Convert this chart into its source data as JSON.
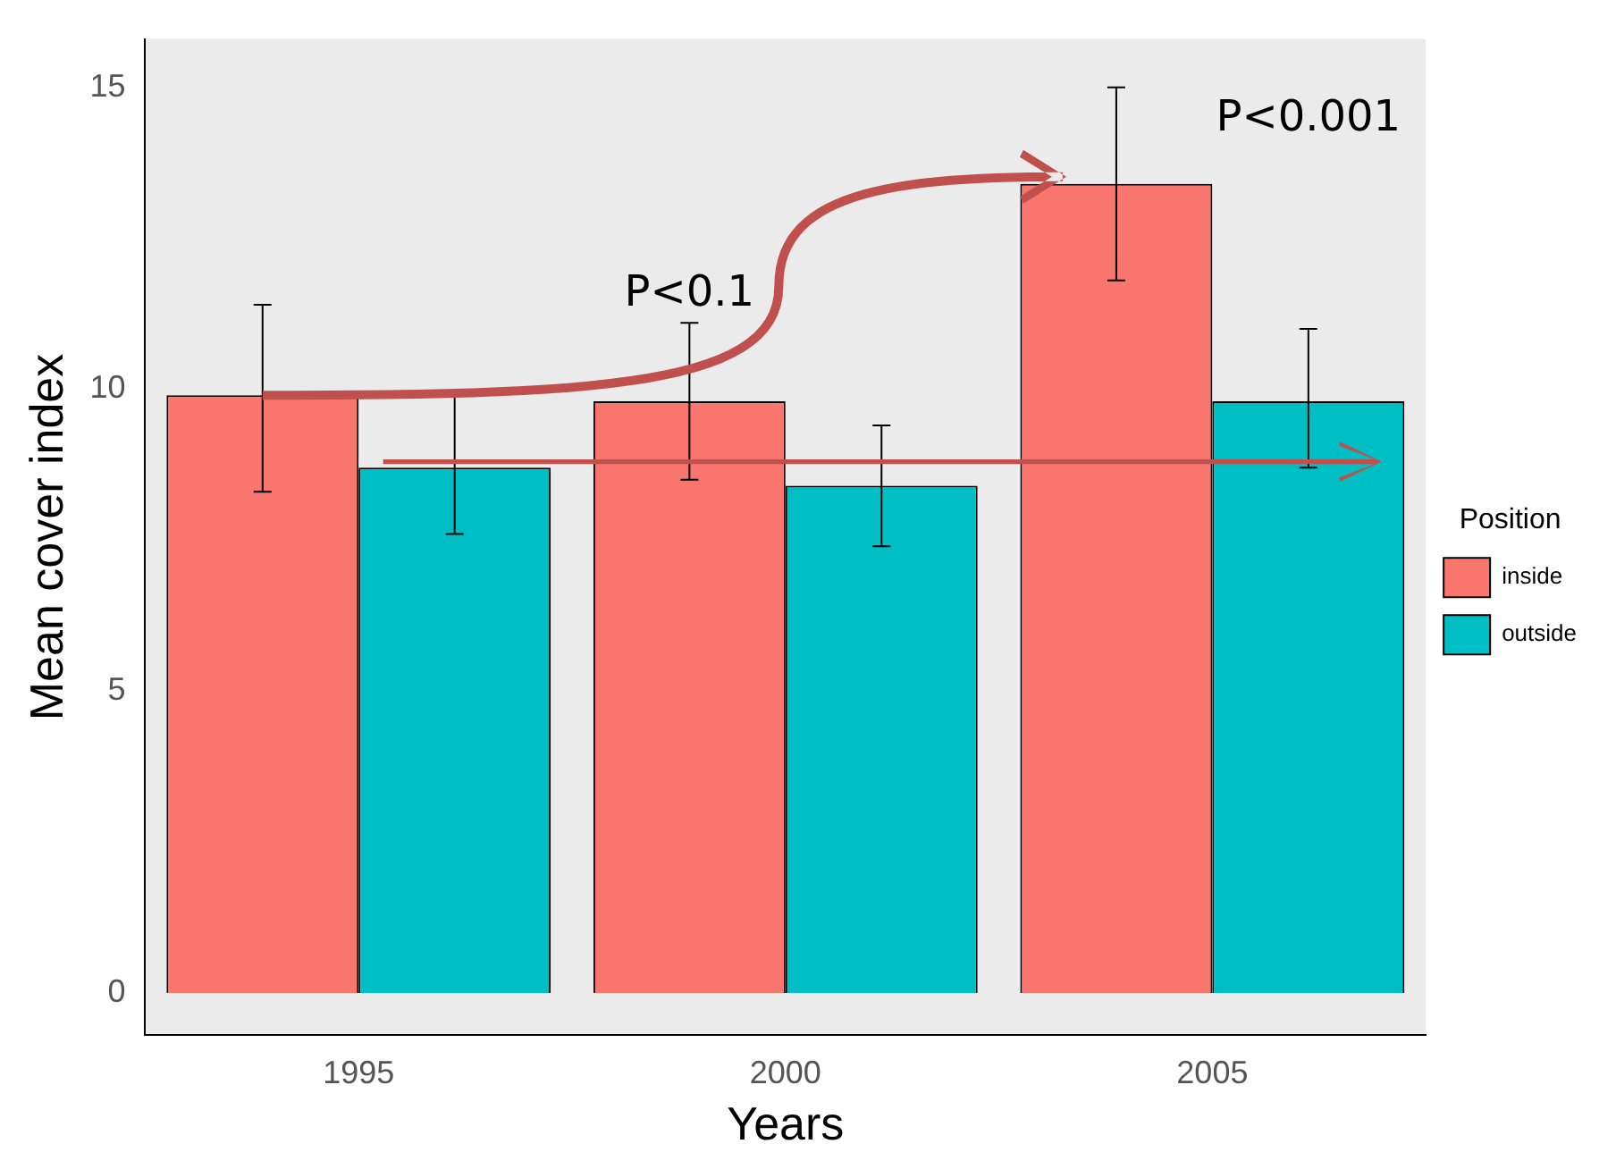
{
  "chart_data": {
    "type": "bar",
    "xlabel": "Years",
    "ylabel": "Mean cover index",
    "legend_title": "Position",
    "categories": [
      "1995",
      "2000",
      "2005"
    ],
    "series": [
      {
        "name": "inside",
        "color": "#f8766d",
        "values": [
          9.9,
          9.8,
          13.4
        ],
        "errors": [
          [
            8.3,
            11.4
          ],
          [
            8.5,
            11.1
          ],
          [
            11.8,
            15.0
          ]
        ]
      },
      {
        "name": "outside",
        "color": "#00bfc4",
        "values": [
          8.7,
          8.4,
          9.8
        ],
        "errors": [
          [
            7.6,
            9.9
          ],
          [
            7.4,
            9.4
          ],
          [
            8.7,
            11.0
          ]
        ]
      }
    ],
    "ylim": [
      -0.7,
      15.8
    ],
    "yticks": [
      0,
      5,
      10,
      15
    ],
    "grid": false,
    "legend": "right",
    "annotations": [
      "P<0.1",
      "P<0.001"
    ]
  }
}
